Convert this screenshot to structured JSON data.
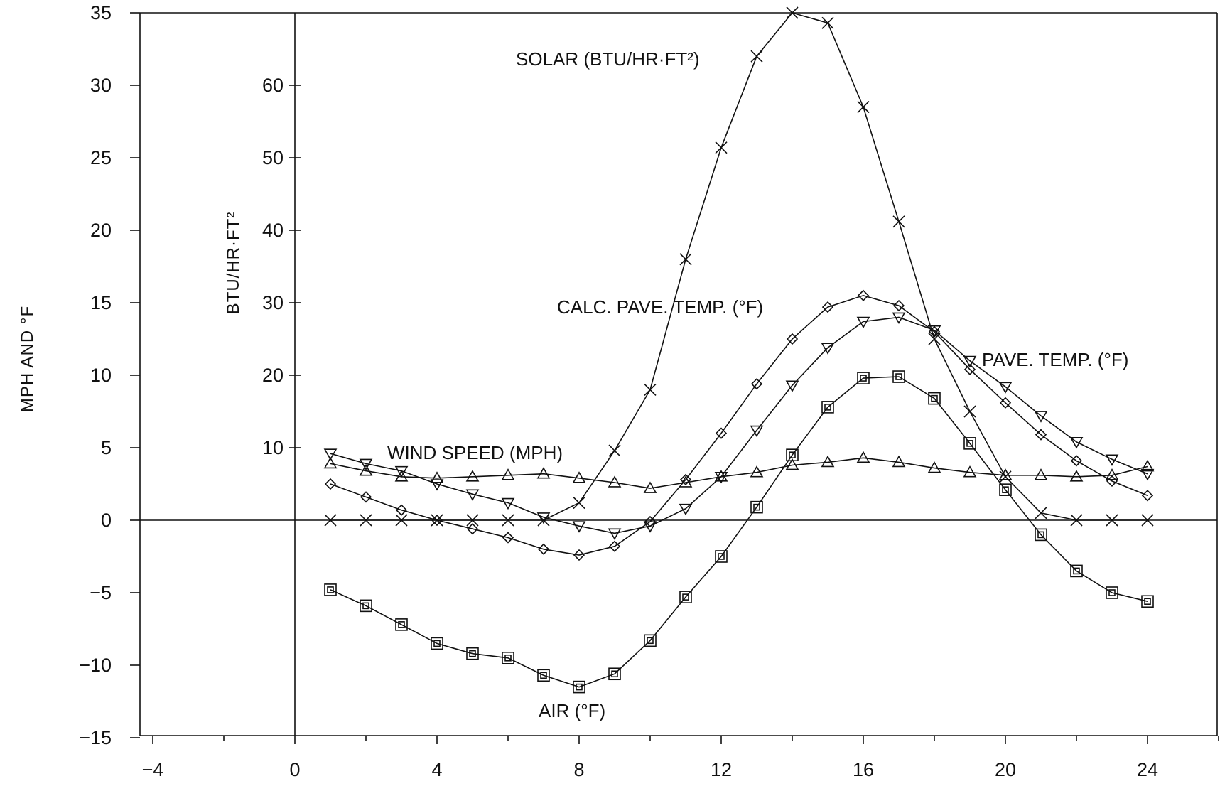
{
  "chart_data": {
    "type": "line",
    "x_axis": {
      "ticks": [
        -4,
        0,
        4,
        8,
        12,
        16,
        20,
        24
      ],
      "range": [
        -4,
        26
      ]
    },
    "y_axis_left": {
      "label": "MPH AND °F",
      "ticks": [
        35,
        30,
        25,
        20,
        15,
        10,
        5,
        0,
        -5,
        -10,
        -15
      ],
      "tick_labels": [
        "35",
        "30",
        "25",
        "20",
        "15",
        "10",
        "5",
        "0",
        "−5",
        "−10",
        "−15"
      ],
      "range": [
        -15,
        35
      ]
    },
    "y_axis_inner": {
      "label": "BTU/HR·FT²",
      "ticks": [
        10,
        20,
        30,
        40,
        50,
        60
      ],
      "tick_labels": [
        "10",
        "20",
        "30",
        "40",
        "50",
        "60"
      ],
      "note": "inner scale value = 2 × left-scale value"
    },
    "grid": false,
    "series": [
      {
        "name": "SOLAR (BTU/HR·FT²)",
        "marker": "x",
        "x": [
          1,
          2,
          3,
          4,
          5,
          6,
          7,
          8,
          9,
          10,
          11,
          12,
          13,
          14,
          15,
          16,
          17,
          18,
          19,
          20,
          21,
          22,
          23,
          24
        ],
        "y": [
          0,
          0,
          0,
          0,
          0,
          0,
          0,
          1.2,
          4.8,
          9,
          18,
          25.7,
          32,
          35,
          34.3,
          28.5,
          20.6,
          12.5,
          7.5,
          3,
          0.5,
          0,
          0,
          0
        ]
      },
      {
        "name": "CALC. PAVE. TEMP. (°F)",
        "marker": "diamond",
        "x": [
          1,
          2,
          3,
          4,
          5,
          6,
          7,
          8,
          9,
          10,
          11,
          12,
          13,
          14,
          15,
          16,
          17,
          18,
          19,
          20,
          21,
          22,
          23,
          24
        ],
        "y": [
          2.5,
          1.6,
          0.7,
          0,
          -0.6,
          -1.2,
          -2,
          -2.4,
          -1.8,
          -0.1,
          2.8,
          6,
          9.4,
          12.5,
          14.7,
          15.5,
          14.8,
          13,
          10.4,
          8.1,
          5.9,
          4.1,
          2.7,
          1.7
        ]
      },
      {
        "name": "PAVE. TEMP. (°F)",
        "marker": "triangle-down",
        "x": [
          1,
          2,
          3,
          4,
          5,
          6,
          7,
          8,
          9,
          10,
          11,
          12,
          13,
          14,
          15,
          16,
          17,
          18,
          19,
          20,
          21,
          22,
          23,
          24
        ],
        "y": [
          4.6,
          3.9,
          3.4,
          2.5,
          1.8,
          1.2,
          0.2,
          -0.4,
          -0.9,
          -0.4,
          0.8,
          3,
          6.2,
          9.3,
          11.9,
          13.7,
          14,
          13.1,
          11,
          9.2,
          7.2,
          5.4,
          4.2,
          3.2
        ]
      },
      {
        "name": "WIND SPEED (MPH)",
        "marker": "triangle-up",
        "x": [
          1,
          2,
          3,
          4,
          5,
          6,
          7,
          8,
          9,
          10,
          11,
          12,
          13,
          14,
          15,
          16,
          17,
          18,
          19,
          20,
          21,
          22,
          23,
          24
        ],
        "y": [
          3.9,
          3.4,
          3,
          2.9,
          3,
          3.1,
          3.2,
          2.9,
          2.6,
          2.2,
          2.6,
          3,
          3.3,
          3.8,
          4,
          4.3,
          4,
          3.6,
          3.3,
          3.1,
          3.1,
          3,
          3.1,
          3.7
        ]
      },
      {
        "name": "AIR (°F)",
        "marker": "square",
        "x": [
          1,
          2,
          3,
          4,
          5,
          6,
          7,
          8,
          9,
          10,
          11,
          12,
          13,
          14,
          15,
          16,
          17,
          18,
          19,
          20,
          21,
          22,
          23,
          24
        ],
        "y": [
          -4.8,
          -5.9,
          -7.2,
          -8.5,
          -9.2,
          -9.5,
          -10.7,
          -11.5,
          -10.6,
          -8.3,
          -5.3,
          -2.5,
          0.9,
          4.5,
          7.8,
          9.8,
          9.9,
          8.4,
          5.3,
          2.1,
          -1,
          -3.5,
          -5,
          -5.6
        ]
      }
    ]
  }
}
